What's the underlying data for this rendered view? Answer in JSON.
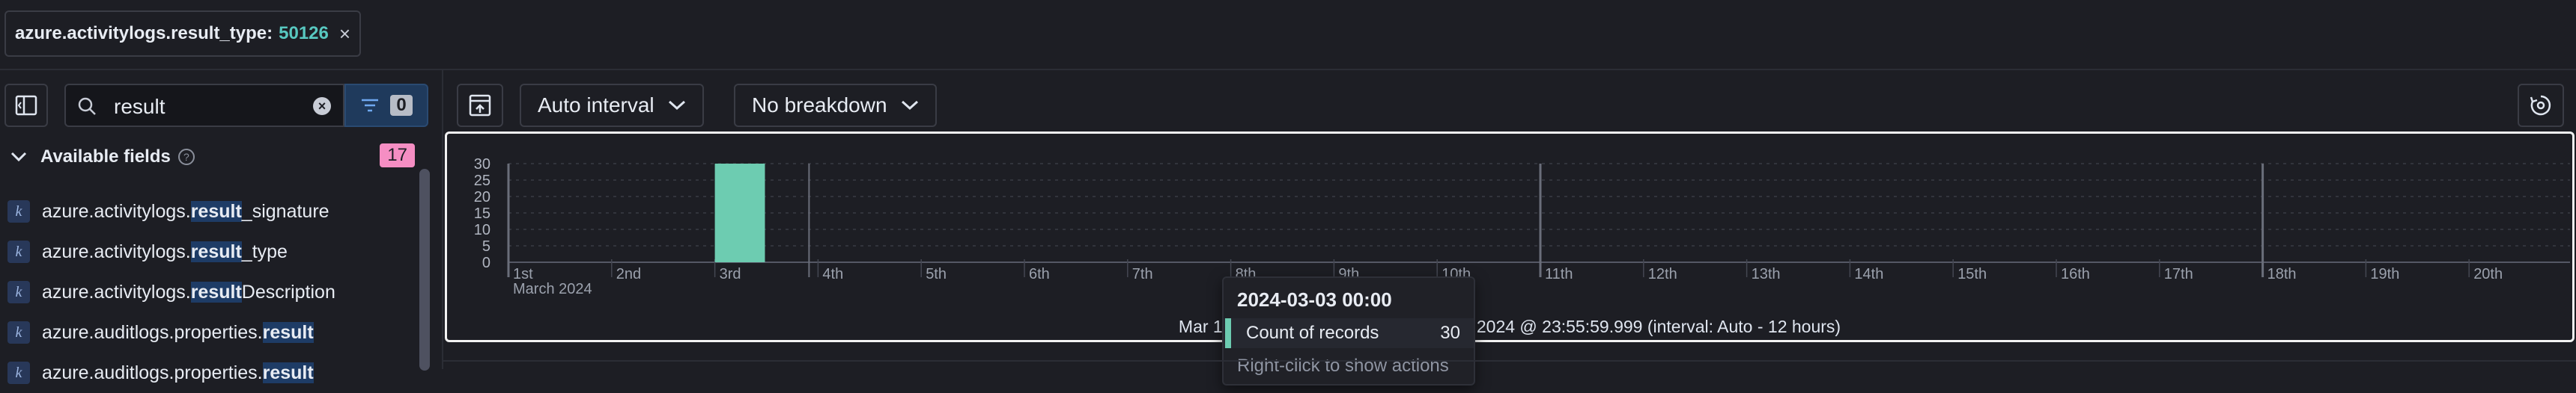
{
  "filter_pill": {
    "field": "azure.activitylogs.result_type:",
    "value": "50126"
  },
  "sidebar": {
    "search_value": "result",
    "filter_count": "0",
    "available_fields_label": "Available fields",
    "available_fields_count": "17",
    "fields": [
      {
        "type": "k",
        "pre": "azure.activitylogs.",
        "match": "result",
        "post": "_signature"
      },
      {
        "type": "k",
        "pre": "azure.activitylogs.",
        "match": "result",
        "post": "_type"
      },
      {
        "type": "k",
        "pre": "azure.activitylogs.",
        "match": "result",
        "post": "Description"
      },
      {
        "type": "k",
        "pre": "azure.auditlogs.properties.",
        "match": "result",
        "post": ""
      },
      {
        "type": "k",
        "pre": "azure.auditlogs.properties.",
        "match": "result",
        "post": ""
      }
    ]
  },
  "toolbar": {
    "interval_label": "Auto interval",
    "breakdown_label": "No breakdown"
  },
  "chart_data": {
    "type": "bar",
    "x_labels": [
      "1st",
      "2nd",
      "3rd",
      "4th",
      "5th",
      "6th",
      "7th",
      "8th",
      "9th",
      "10th",
      "11th",
      "12th",
      "13th",
      "14th",
      "15th",
      "16th",
      "17th",
      "18th",
      "19th",
      "20th"
    ],
    "x_sublabel": "March 2024",
    "y_ticks": [
      30,
      25,
      20,
      15,
      10,
      5,
      0
    ],
    "ylim": [
      0,
      30
    ],
    "series": [
      {
        "name": "Count of records",
        "bars": [
          {
            "start": "2024-03-03 00:00",
            "value": 30
          }
        ]
      }
    ],
    "bar_color": "#6dccb1",
    "time_range": "Mar 1, 2024 @ 00:00:00.000 - Mar 20, 2024 @ 23:55:59.999 (interval: Auto - 12 hours)",
    "grid": true
  },
  "tooltip": {
    "title": "2024-03-03 00:00",
    "label": "Count of records",
    "value": "30",
    "hint": "Right-click to show actions"
  }
}
